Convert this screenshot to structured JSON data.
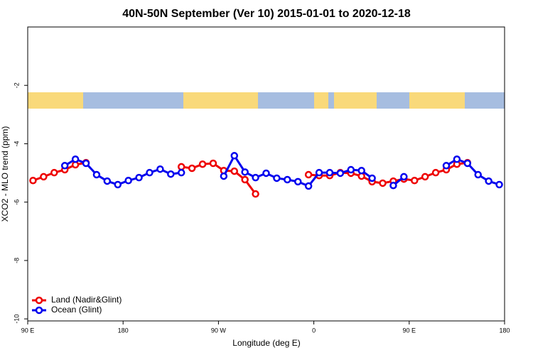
{
  "chart_data": {
    "type": "line",
    "title": "40N-50N September (Ver 10)   2015-01-01 to 2020-12-18",
    "x_label": "Longitude (deg E)",
    "y_label": "XCO2 - MLO trend (ppm)",
    "xlim": [
      90,
      540
    ],
    "xticks": [
      {
        "value": 90,
        "label": "90 E"
      },
      {
        "value": 180,
        "label": "180"
      },
      {
        "value": 270,
        "label": "90 W"
      },
      {
        "value": 360,
        "label": "0"
      },
      {
        "value": 450,
        "label": "90 E"
      },
      {
        "value": 540,
        "label": "180"
      }
    ],
    "ylim": [
      -10.07,
      0
    ],
    "yticks": [
      -10,
      -8,
      -6,
      -4,
      -2
    ],
    "legend": "bottom-left",
    "x": [
      95,
      105,
      115,
      125,
      135,
      145,
      155,
      165,
      175,
      185,
      195,
      205,
      215,
      225,
      235,
      245,
      255,
      265,
      275,
      285,
      295,
      305,
      315,
      325,
      335,
      345,
      355,
      365,
      375,
      385,
      395,
      405,
      415,
      425,
      435,
      445,
      455,
      465,
      475,
      485,
      495,
      505,
      515,
      525,
      535
    ],
    "series": [
      {
        "name": "Land (Nadir&Glint)",
        "color": "#ee0000",
        "values": [
          -5.26,
          -5.13,
          -4.99,
          -4.89,
          -4.72,
          -4.65,
          null,
          null,
          null,
          null,
          null,
          null,
          null,
          null,
          -4.79,
          -4.84,
          -4.7,
          -4.67,
          -4.92,
          -4.94,
          -5.23,
          -5.72,
          null,
          null,
          null,
          null,
          -5.06,
          -5.09,
          -5.09,
          -4.99,
          -5.01,
          -5.11,
          -5.3,
          -5.35,
          -5.28,
          -5.21,
          -5.26,
          -5.13,
          -4.99,
          -4.89,
          -4.7,
          -4.65,
          null,
          null,
          null
        ]
      },
      {
        "name": "Ocean (Glint)",
        "color": "#0000ee",
        "values": [
          null,
          null,
          null,
          -4.75,
          -4.53,
          -4.67,
          -5.06,
          -5.28,
          -5.4,
          -5.26,
          -5.16,
          -4.99,
          -4.87,
          -5.04,
          -4.99,
          null,
          null,
          null,
          -5.11,
          -4.41,
          -4.97,
          -5.16,
          -5.01,
          -5.18,
          -5.23,
          -5.3,
          -5.45,
          -4.99,
          -4.99,
          -5.01,
          -4.89,
          -4.92,
          -5.18,
          null,
          -5.43,
          -5.13,
          null,
          null,
          null,
          -4.75,
          -4.53,
          -4.67,
          -5.06,
          -5.28,
          -5.4
        ]
      }
    ]
  }
}
